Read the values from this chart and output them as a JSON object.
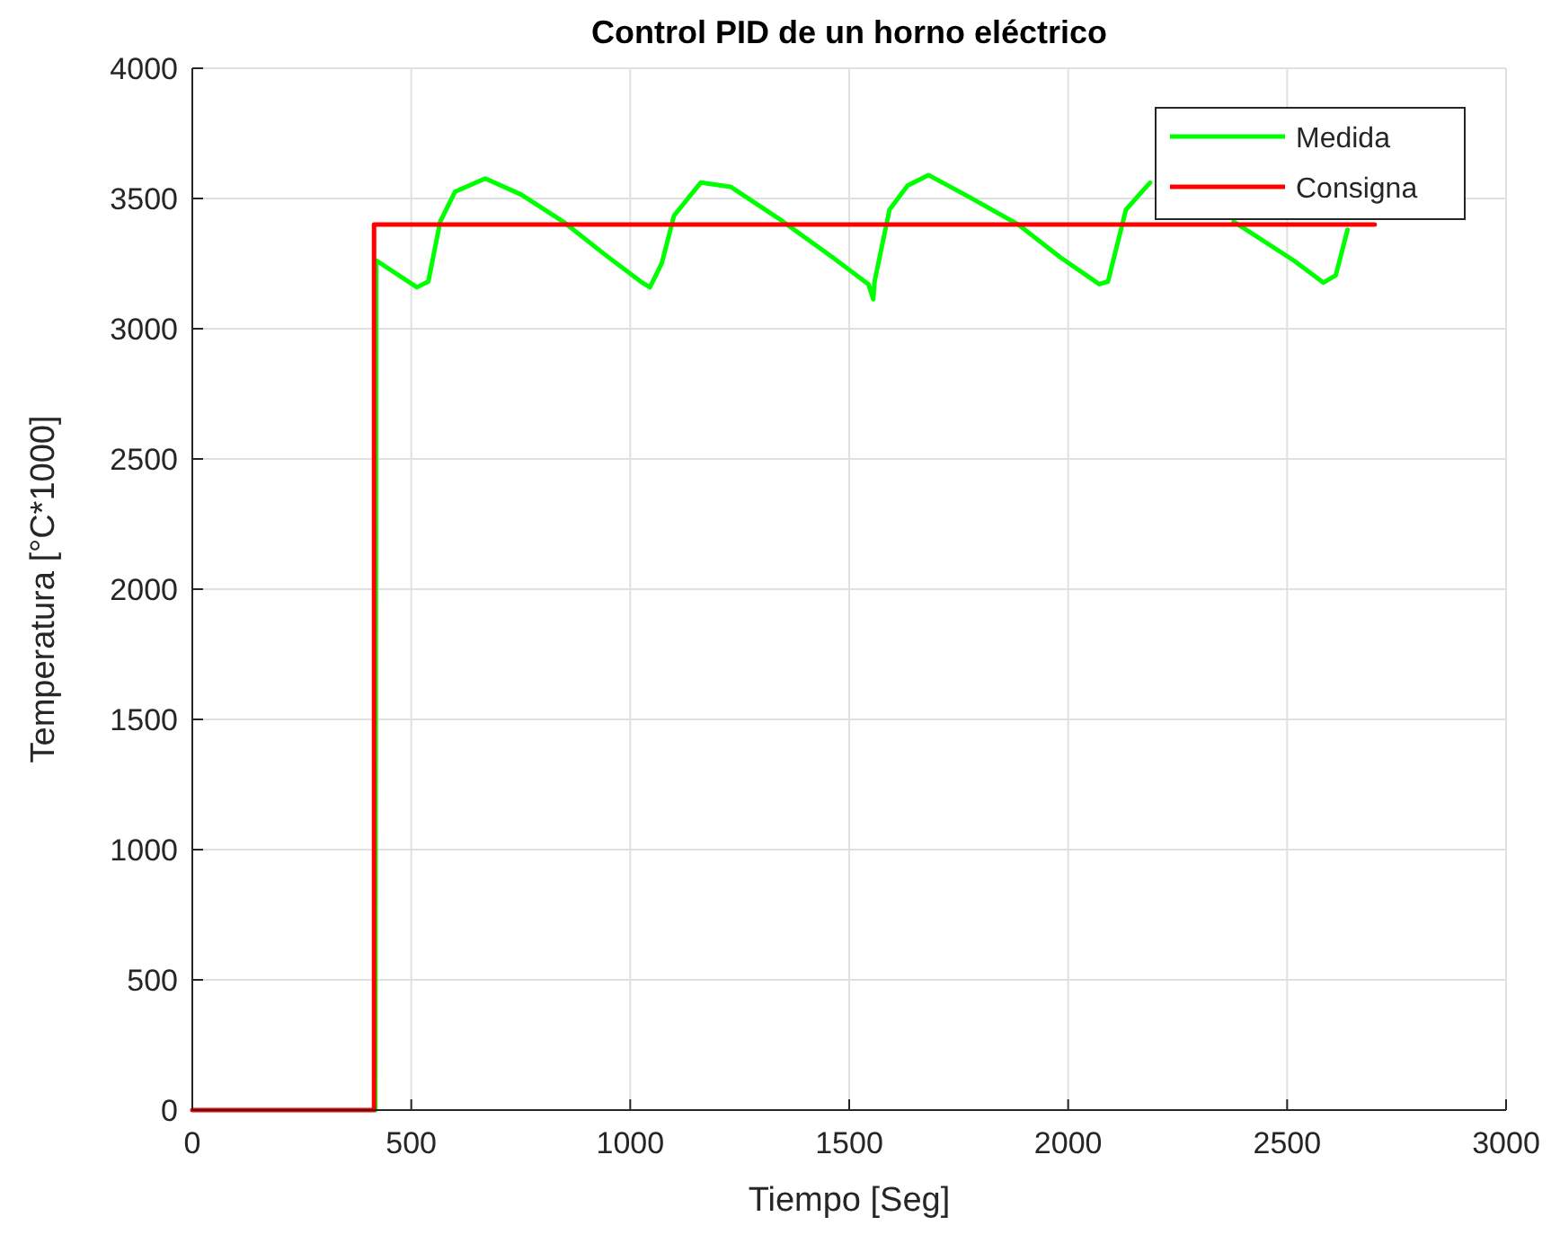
{
  "chart_data": {
    "type": "line",
    "title": "Control PID de un horno eléctrico",
    "xlabel": "Tiempo [Seg]",
    "ylabel": "Temperatura [°C*1000]",
    "xlim": [
      0,
      3000
    ],
    "ylim": [
      0,
      4000
    ],
    "xticks": [
      0,
      500,
      1000,
      1500,
      2000,
      2500,
      3000
    ],
    "yticks": [
      0,
      500,
      1000,
      1500,
      2000,
      2500,
      3000,
      3500,
      4000
    ],
    "grid": true,
    "legend": "top right",
    "line_style": "solid",
    "marker": "none",
    "series": [
      {
        "name": "Medida",
        "color": "#00ff00",
        "x": [
          418,
          420,
          513,
          539,
          566,
          600,
          669,
          751,
          847,
          942,
          1024,
          1045,
          1072,
          1100,
          1161,
          1229,
          1339,
          1462,
          1544,
          1555,
          1558,
          1592,
          1633,
          1681,
          1777,
          1886,
          1982,
          2071,
          2091,
          2132,
          2187,
          2280,
          2378,
          2515,
          2583,
          2611,
          2638
        ],
        "values": [
          0,
          3262,
          3159,
          3181,
          3411,
          3526,
          3577,
          3515,
          3411,
          3285,
          3181,
          3159,
          3251,
          3434,
          3561,
          3545,
          3423,
          3274,
          3171,
          3113,
          3181,
          3457,
          3549,
          3590,
          3503,
          3400,
          3274,
          3171,
          3181,
          3457,
          3561,
          null,
          3411,
          3262,
          3177,
          3205,
          3380
        ]
      },
      {
        "name": "Consigna",
        "color": "#ff0000",
        "x": [
          0,
          415,
          415,
          2700
        ],
        "values": [
          0,
          0,
          3400,
          3400
        ]
      }
    ]
  }
}
